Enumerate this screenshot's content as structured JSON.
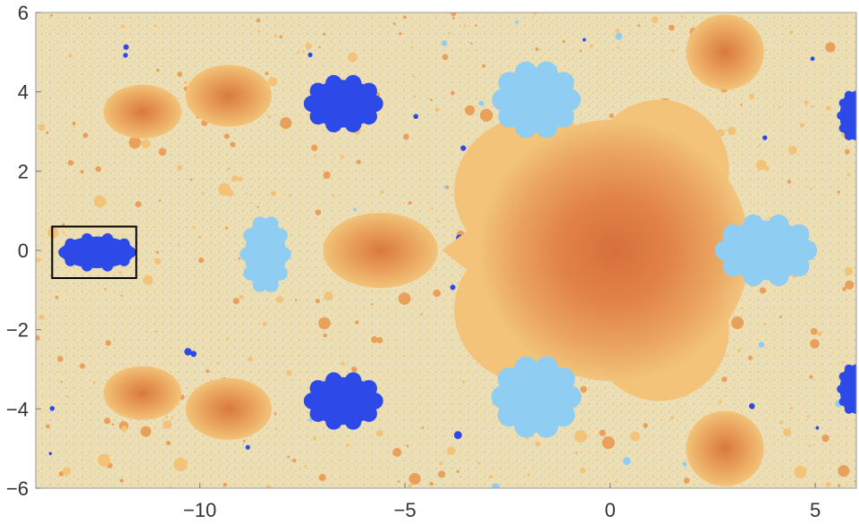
{
  "chart_data": {
    "type": "heatmap",
    "title": "",
    "xlabel": "",
    "ylabel": "",
    "xlim": [
      -14,
      6
    ],
    "ylim": [
      -6,
      6
    ],
    "x_ticks": [
      -10,
      -5,
      0,
      5
    ],
    "y_ticks": [
      -6,
      -4,
      -2,
      0,
      2,
      4,
      6
    ],
    "x_tick_labels": [
      "−10",
      "−5",
      "0",
      "5"
    ],
    "y_tick_labels": [
      "−6",
      "−4",
      "−2",
      "0",
      "2",
      "4",
      "6"
    ],
    "grid": false,
    "highlight_box": {
      "x": [
        -13.6,
        -11.55
      ],
      "y": [
        -0.7,
        0.6
      ]
    },
    "colors": {
      "background": "#eedfb3",
      "speckle_blue": "#a9c2dc",
      "orange_light": "#f2c379",
      "orange_mid": "#e9a05a",
      "orange_deep": "#d9793e",
      "light_blue": "#8fcdf3",
      "deep_blue": "#2d49e8",
      "box": "#000000"
    },
    "regions": {
      "orange_lobes": [
        {
          "cx": -11.4,
          "cy": 3.5,
          "rx": 0.95,
          "ry": 0.68
        },
        {
          "cx": -9.3,
          "cy": 3.9,
          "rx": 1.05,
          "ry": 0.78
        },
        {
          "cx": -11.4,
          "cy": -3.6,
          "rx": 0.95,
          "ry": 0.68
        },
        {
          "cx": -9.3,
          "cy": -4.0,
          "rx": 1.05,
          "ry": 0.78
        },
        {
          "cx": -5.6,
          "cy": 0.0,
          "rx": 1.4,
          "ry": 0.95
        },
        {
          "cx": 2.8,
          "cy": 5.0,
          "rx": 0.95,
          "ry": 0.95
        },
        {
          "cx": 2.8,
          "cy": -5.0,
          "rx": 0.95,
          "ry": 0.95
        }
      ],
      "light_blue_sets": [
        {
          "cx": -8.4,
          "cy": -0.1,
          "rx": 0.5,
          "ry": 0.9
        },
        {
          "cx": -1.8,
          "cy": 3.8,
          "rx": 0.9,
          "ry": 0.8
        },
        {
          "cx": -1.8,
          "cy": -3.7,
          "rx": 0.9,
          "ry": 0.85
        },
        {
          "cx": 3.8,
          "cy": 0.0,
          "rx": 1.1,
          "ry": 0.75
        }
      ],
      "deep_blue_sets": [
        {
          "cx": -12.5,
          "cy": -0.05,
          "rx": 0.9,
          "ry": 0.4
        },
        {
          "cx": -6.5,
          "cy": 3.7,
          "rx": 0.85,
          "ry": 0.6
        },
        {
          "cx": -6.5,
          "cy": -3.8,
          "rx": 0.85,
          "ry": 0.6
        },
        {
          "cx": 5.9,
          "cy": 3.4,
          "rx": 0.3,
          "ry": 0.6
        },
        {
          "cx": 5.9,
          "cy": -3.5,
          "rx": 0.3,
          "ry": 0.6
        }
      ]
    }
  }
}
